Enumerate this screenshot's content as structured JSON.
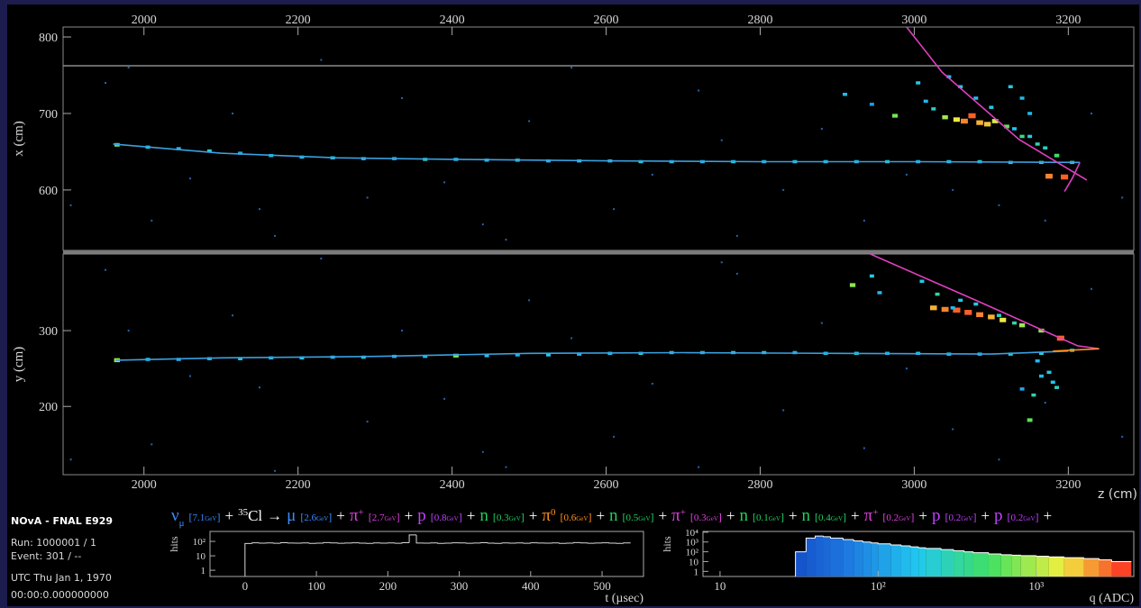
{
  "info": {
    "title": "NOvA - FNAL E929",
    "run": "Run:  1000001 / 1",
    "event": "Event: 301 / --",
    "date": "UTC Thu Jan 1, 1970",
    "time": "00:00:0.000000000"
  },
  "z_axis": {
    "label": "z (cm)",
    "lim": [
      1895,
      3285
    ],
    "ticks": [
      2000,
      2200,
      2400,
      2600,
      2800,
      3000,
      3200
    ]
  },
  "colormap": [
    "#0a1a8a",
    "#1040c0",
    "#1e78e0",
    "#20c8f0",
    "#40e060",
    "#f0f040",
    "#ff2020"
  ],
  "views": [
    {
      "label": "x (cm)",
      "vlim": [
        521,
        813
      ],
      "vticks": [
        600,
        700,
        800
      ],
      "tracks": [
        {
          "color": "#3aa0e0",
          "z": [
            1960,
            2100,
            2250,
            2400,
            2600,
            2800,
            3000,
            3215
          ],
          "v": [
            660,
            648,
            642,
            640,
            638,
            637,
            637,
            636
          ]
        },
        {
          "color": "#e040c0",
          "z": [
            2990,
            3036,
            3136,
            3224
          ],
          "v": [
            813,
            754,
            666,
            613
          ]
        },
        {
          "color": "#e040c0",
          "z": [
            3215,
            3205,
            3195
          ],
          "v": [
            636,
            615,
            598
          ]
        }
      ],
      "hits": {
        "z": [
          1965,
          2005,
          2045,
          2085,
          2125,
          2165,
          2205,
          2245,
          2285,
          2325,
          2365,
          2405,
          2445,
          2485,
          2525,
          2565,
          2605,
          2645,
          2685,
          2725,
          2765,
          2805,
          2845,
          2885,
          2925,
          2965,
          3005,
          3045,
          3085,
          3125,
          3165,
          3205,
          3040,
          3055,
          3065,
          3075,
          3085,
          3095,
          3105,
          3120,
          3140,
          3160,
          3185,
          3195,
          3175,
          2910,
          2975,
          3005,
          3015,
          3025,
          3140,
          3125,
          3150,
          2945,
          3045,
          3060,
          3080,
          3100,
          3130,
          3150,
          3170
        ],
        "v": [
          659,
          656,
          654,
          651,
          648,
          645,
          643,
          642,
          641,
          641,
          640,
          640,
          639,
          639,
          638,
          638,
          638,
          637,
          637,
          637,
          637,
          637,
          637,
          637,
          637,
          637,
          637,
          637,
          637,
          636,
          636,
          636,
          695,
          692,
          690,
          697,
          688,
          686,
          690,
          683,
          670,
          660,
          645,
          617,
          618,
          725,
          697,
          740,
          716,
          706,
          720,
          735,
          700,
          712,
          748,
          735,
          720,
          708,
          680,
          670,
          655
        ],
        "q": [
          600,
          180,
          140,
          220,
          130,
          160,
          150,
          200,
          170,
          140,
          230,
          160,
          150,
          190,
          140,
          170,
          150,
          210,
          160,
          140,
          180,
          150,
          200,
          170,
          160,
          220,
          150,
          180,
          200,
          170,
          250,
          300,
          900,
          1500,
          2500,
          3000,
          2000,
          1800,
          1200,
          600,
          400,
          300,
          500,
          3000,
          2500,
          150,
          700,
          200,
          150,
          250,
          150,
          200,
          150,
          100,
          150,
          180,
          160,
          200,
          180,
          220,
          250
        ]
      },
      "noise": {
        "z": [
          1905,
          1950,
          2010,
          2060,
          2115,
          2170,
          2230,
          2290,
          2335,
          2390,
          2440,
          2500,
          2555,
          2610,
          2660,
          2720,
          2770,
          2830,
          2880,
          2935,
          2990,
          3050,
          3110,
          3170,
          3230,
          1980,
          2150,
          2470,
          2750,
          3270
        ],
        "v": [
          580,
          740,
          560,
          615,
          700,
          540,
          770,
          590,
          720,
          610,
          555,
          690,
          760,
          575,
          620,
          730,
          540,
          600,
          680,
          560,
          620,
          600,
          580,
          560,
          700,
          760,
          575,
          535,
          665,
          590
        ]
      }
    },
    {
      "label": "y (cm)",
      "vlim": [
        110,
        401
      ],
      "vticks": [
        200,
        300
      ],
      "tracks": [
        {
          "color": "#3aa0e0",
          "z": [
            1963,
            2100,
            2300,
            2500,
            2700,
            2900,
            3100,
            3200
          ],
          "v": [
            261,
            264,
            266,
            270,
            271,
            270,
            269,
            273
          ]
        },
        {
          "color": "#e040c0",
          "z": [
            2943,
            3080,
            3212,
            3240
          ],
          "v": [
            401,
            340,
            280,
            276
          ]
        },
        {
          "color": "#ff9020",
          "z": [
            3180,
            3240
          ],
          "v": [
            273,
            276
          ]
        }
      ],
      "hits": {
        "z": [
          1965,
          2005,
          2045,
          2085,
          2125,
          2165,
          2205,
          2245,
          2285,
          2325,
          2365,
          2405,
          2445,
          2485,
          2525,
          2565,
          2605,
          2645,
          2685,
          2725,
          2765,
          2805,
          2845,
          2885,
          2925,
          2965,
          3005,
          3045,
          3085,
          3125,
          3165,
          3205,
          3025,
          3040,
          3055,
          3070,
          3085,
          3100,
          3115,
          3140,
          3165,
          3190,
          3150,
          3155,
          3165,
          3175,
          3180,
          3185,
          3140,
          3160,
          2920,
          2945,
          2955,
          3010,
          3030,
          3050,
          3060,
          3080,
          3110,
          3130
        ],
        "v": [
          261,
          262,
          262,
          263,
          263,
          264,
          264,
          265,
          265,
          266,
          266,
          267,
          267,
          268,
          268,
          269,
          270,
          270,
          271,
          271,
          271,
          271,
          271,
          270,
          270,
          270,
          270,
          269,
          269,
          269,
          270,
          274,
          330,
          328,
          327,
          324,
          321,
          318,
          314,
          307,
          300,
          290,
          182,
          215,
          240,
          245,
          232,
          225,
          223,
          260,
          360,
          372,
          350,
          365,
          348,
          330,
          340,
          335,
          320,
          310
        ],
        "q": [
          900,
          170,
          140,
          160,
          210,
          150,
          180,
          140,
          200,
          160,
          150,
          700,
          170,
          140,
          190,
          150,
          160,
          220,
          170,
          150,
          180,
          200,
          140,
          160,
          210,
          150,
          170,
          180,
          160,
          200,
          230,
          300,
          2000,
          2500,
          3000,
          3000,
          2500,
          2000,
          1500,
          900,
          800,
          3000,
          600,
          300,
          150,
          200,
          180,
          250,
          120,
          150,
          800,
          200,
          150,
          200,
          300,
          150,
          180,
          200,
          250,
          300
        ]
      },
      "noise": {
        "z": [
          1905,
          1950,
          2010,
          2060,
          2115,
          2170,
          2230,
          2290,
          2335,
          2390,
          2440,
          2500,
          2555,
          2610,
          2660,
          2720,
          2770,
          2830,
          2880,
          2935,
          2990,
          3050,
          3110,
          3170,
          3230,
          1980,
          2150,
          2470,
          2750,
          3270
        ],
        "v": [
          130,
          380,
          150,
          240,
          320,
          115,
          395,
          180,
          300,
          210,
          140,
          340,
          290,
          160,
          230,
          120,
          375,
          195,
          310,
          145,
          250,
          170,
          130,
          205,
          355,
          300,
          225,
          120,
          390,
          160
        ]
      }
    }
  ],
  "reaction": {
    "plus": "+",
    "arrow": "→",
    "open": "[",
    "close": "]",
    "unit": "GeV",
    "initial": {
      "symbol": "ν",
      "sub": "μ",
      "energy": "7.1",
      "color": "#3c8cff"
    },
    "target": {
      "sup": "35",
      "symbol": "Cl"
    },
    "final": [
      {
        "symbol": "μ",
        "energy": "2.6",
        "color": "#3c8cff"
      },
      {
        "symbol": "π",
        "sup": "+",
        "energy": "2.7",
        "color": "#e040e0"
      },
      {
        "symbol": "p",
        "energy": "0.8",
        "color": "#c040ff"
      },
      {
        "symbol": "n",
        "energy": "0.3",
        "color": "#20d060"
      },
      {
        "symbol": "π",
        "sup": "0",
        "energy": "0.6",
        "color": "#ff9020"
      },
      {
        "symbol": "n",
        "energy": "0.5",
        "color": "#20d060"
      },
      {
        "symbol": "π",
        "sup": "+",
        "energy": "0.3",
        "color": "#e040e0"
      },
      {
        "symbol": "n",
        "energy": "0.1",
        "color": "#20d060"
      },
      {
        "symbol": "n",
        "energy": "0.4",
        "color": "#20d060"
      },
      {
        "symbol": "π",
        "sup": "+",
        "energy": "0.2",
        "color": "#e040e0"
      },
      {
        "symbol": "p",
        "energy": "0.2",
        "color": "#c040ff"
      },
      {
        "symbol": "p",
        "energy": "0.2",
        "color": "#c040ff"
      }
    ]
  },
  "time_hist": {
    "type": "histogram",
    "ylabel": "hits",
    "xlabel": "t (µsec)",
    "color": "#d8d8d8",
    "log_y": true,
    "bins": [
      0,
      10,
      20,
      30,
      40,
      50,
      60,
      70,
      80,
      90,
      100,
      110,
      120,
      130,
      140,
      150,
      160,
      170,
      180,
      190,
      200,
      210,
      220,
      230,
      240,
      250,
      260,
      270,
      280,
      290,
      300,
      310,
      320,
      330,
      340,
      350,
      360,
      370,
      380,
      390,
      400,
      410,
      420,
      430,
      440,
      450,
      460,
      470,
      480,
      490,
      500,
      510,
      520,
      530,
      540
    ],
    "values": [
      72,
      80,
      76,
      78,
      74,
      81,
      77,
      75,
      79,
      73,
      76,
      82,
      78,
      74,
      77,
      80,
      75,
      73,
      79,
      76,
      78,
      74,
      81,
      280,
      77,
      75,
      79,
      73,
      76,
      80,
      78,
      74,
      77,
      81,
      75,
      73,
      79,
      76,
      78,
      74,
      80,
      77,
      75,
      79,
      73,
      76,
      82,
      78,
      74,
      77,
      80,
      75,
      73,
      79
    ],
    "xlim": [
      -49,
      558
    ],
    "ylim": [
      0.37,
      490
    ],
    "xticks": [
      0,
      100,
      200,
      300,
      400,
      500
    ],
    "yticks": [
      1,
      10,
      {
        "value": 100,
        "label": "10²"
      }
    ]
  },
  "adc_hist": {
    "type": "histogram",
    "ylabel": "hits",
    "xlabel": "q (ADC)",
    "color": "#ffffff",
    "log_x": true,
    "log_y": true,
    "bins": [
      30,
      35,
      40,
      45,
      50,
      60,
      70,
      80,
      90,
      100,
      120,
      140,
      160,
      180,
      200,
      250,
      300,
      350,
      400,
      500,
      600,
      700,
      800,
      1000,
      1200,
      1500,
      2000,
      2500,
      3000,
      4000
    ],
    "values": [
      100,
      2500,
      4000,
      3500,
      2500,
      1800,
      1300,
      1000,
      800,
      650,
      500,
      400,
      320,
      260,
      220,
      170,
      130,
      100,
      80,
      60,
      50,
      45,
      40,
      35,
      30,
      25,
      20,
      15,
      10
    ],
    "xlim": [
      7.8,
      4140
    ],
    "ylim": [
      0.3,
      12000
    ],
    "xticks": [
      10,
      {
        "value": 100,
        "label": "10²"
      },
      {
        "value": 1000,
        "label": "10³"
      }
    ],
    "yticks": [
      1,
      10,
      {
        "value": 100,
        "label": "10²"
      },
      {
        "value": 1000,
        "label": "10³"
      },
      {
        "value": 10000,
        "label": "10⁴"
      }
    ]
  }
}
